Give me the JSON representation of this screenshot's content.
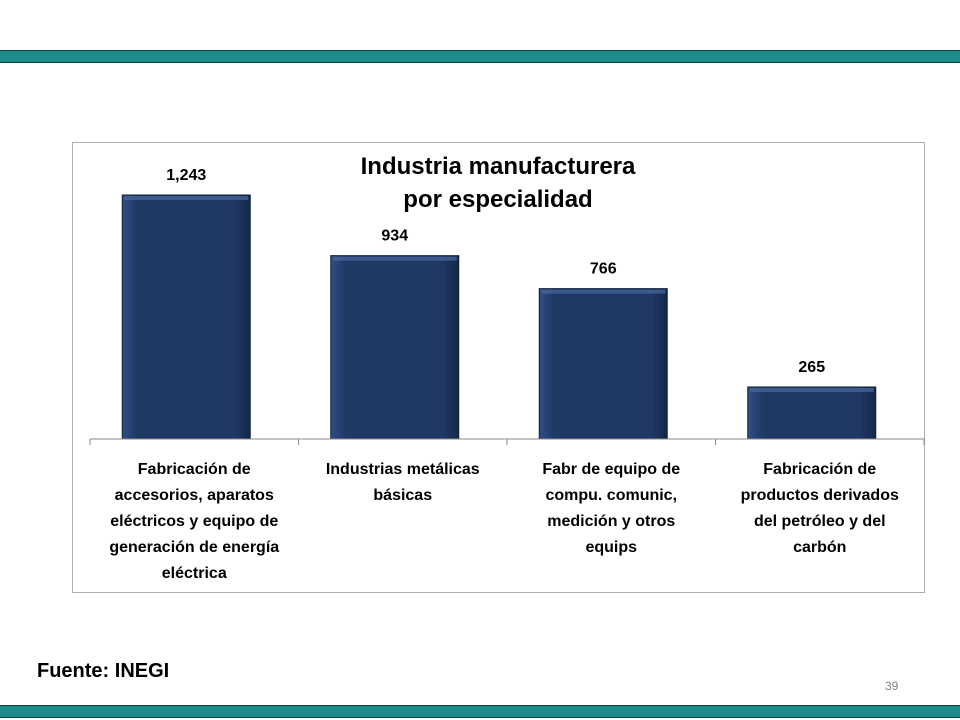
{
  "slide": {
    "source": "Fuente: INEGI",
    "page_number": "39",
    "accent_color": "#1f8a8a"
  },
  "chart_data": {
    "type": "bar",
    "title": [
      "Industria manufacturera",
      "por especialidad"
    ],
    "categories": [
      [
        "Fabricación de",
        "accesorios, aparatos",
        "eléctricos y equipo de",
        "generación de energía",
        "eléctrica"
      ],
      [
        "Industrias metálicas",
        "básicas"
      ],
      [
        "Fabr de equipo de",
        "compu. comunic,",
        "medición y  otros",
        "equips"
      ],
      [
        "Fabricación de",
        "productos derivados",
        "del petróleo y del",
        "carbón"
      ]
    ],
    "values": [
      1243,
      934,
      766,
      265
    ],
    "value_labels": [
      "1,243",
      "934",
      "766",
      "265"
    ],
    "bar_color": "#1f3864",
    "grid": false,
    "legend": false
  }
}
